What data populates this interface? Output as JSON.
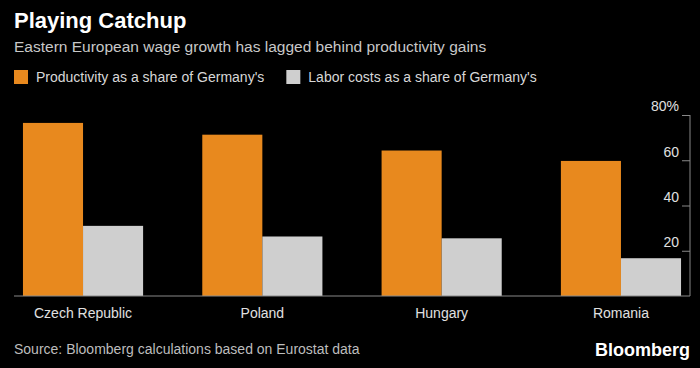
{
  "chart_data": {
    "type": "bar",
    "title": "Playing Catchup",
    "subtitle": "Eastern European wage growth has lagged behind productivity gains",
    "categories": [
      "Czech Republic",
      "Poland",
      "Hungary",
      "Romania"
    ],
    "series": [
      {
        "name": "Productivity as a share of Germany's",
        "color": "#e8891e",
        "values": [
          76.5,
          71.3,
          64.3,
          59.7
        ]
      },
      {
        "name": "Labor costs as a share of Germany's",
        "color": "#cfcfcf",
        "values": [
          31,
          26.3,
          25.5,
          16.7
        ]
      }
    ],
    "ylim": [
      0,
      80
    ],
    "yticks": [
      20,
      40,
      60,
      {
        "value": 80,
        "label": "80%"
      }
    ],
    "grid": false,
    "legend": "top-left",
    "source": "Source: Bloomberg calculations based on Eurostat data",
    "credit": "Bloomberg"
  }
}
